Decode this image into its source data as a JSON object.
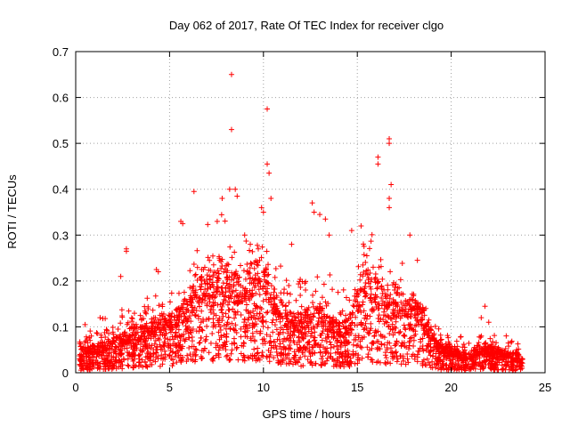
{
  "chart_data": {
    "type": "scatter",
    "title": "Day 062 of 2017, Rate Of TEC Index for receiver clgo",
    "xlabel": "GPS time / hours",
    "ylabel": "ROTI / TECUs",
    "xlim": [
      0,
      25
    ],
    "ylim": [
      0,
      0.7
    ],
    "x_ticks": [
      0,
      5,
      10,
      15,
      20,
      25
    ],
    "x_tick_labels": [
      "0",
      "5",
      "10",
      "15",
      "20",
      "25"
    ],
    "y_ticks": [
      0,
      0.1,
      0.2,
      0.3,
      0.4,
      0.5,
      0.6,
      0.7
    ],
    "y_tick_labels": [
      "0",
      "0.1",
      "0.2",
      "0.3",
      "0.4",
      "0.5",
      "0.6",
      "0.7"
    ],
    "grid": true,
    "marker": "+",
    "color": "#ff0000",
    "series": [
      {
        "name": "ROTI",
        "envelope_hours": [
          0,
          0.5,
          1,
          1.5,
          2,
          2.5,
          3,
          3.5,
          4,
          4.5,
          5,
          5.5,
          6,
          6.5,
          7,
          7.5,
          8,
          8.5,
          9,
          9.5,
          10,
          10.5,
          11,
          11.5,
          12,
          12.5,
          13,
          13.5,
          14,
          14.5,
          15,
          15.5,
          16,
          16.5,
          17,
          17.5,
          18,
          18.5,
          19,
          19.5,
          20,
          20.5,
          21,
          21.5,
          22,
          22.5,
          23,
          23.5,
          23.8
        ],
        "typical_roti": [
          0.03,
          0.04,
          0.04,
          0.05,
          0.05,
          0.06,
          0.07,
          0.07,
          0.08,
          0.09,
          0.09,
          0.1,
          0.12,
          0.14,
          0.16,
          0.17,
          0.17,
          0.15,
          0.15,
          0.17,
          0.17,
          0.13,
          0.11,
          0.09,
          0.09,
          0.1,
          0.1,
          0.09,
          0.08,
          0.08,
          0.13,
          0.16,
          0.15,
          0.12,
          0.12,
          0.12,
          0.12,
          0.1,
          0.06,
          0.04,
          0.04,
          0.03,
          0.03,
          0.04,
          0.04,
          0.04,
          0.03,
          0.03,
          0.02
        ],
        "upper_roti": [
          0.08,
          0.1,
          0.1,
          0.12,
          0.12,
          0.14,
          0.15,
          0.16,
          0.18,
          0.18,
          0.19,
          0.21,
          0.24,
          0.3,
          0.33,
          0.34,
          0.35,
          0.3,
          0.32,
          0.35,
          0.37,
          0.28,
          0.24,
          0.2,
          0.22,
          0.26,
          0.3,
          0.22,
          0.2,
          0.18,
          0.3,
          0.34,
          0.32,
          0.28,
          0.28,
          0.27,
          0.25,
          0.2,
          0.13,
          0.1,
          0.08,
          0.08,
          0.08,
          0.1,
          0.09,
          0.08,
          0.08,
          0.07,
          0.05
        ],
        "outliers": [
          {
            "x": 8.3,
            "y": 0.65
          },
          {
            "x": 8.3,
            "y": 0.53
          },
          {
            "x": 10.2,
            "y": 0.575
          },
          {
            "x": 10.2,
            "y": 0.455
          },
          {
            "x": 10.3,
            "y": 0.435
          },
          {
            "x": 16.7,
            "y": 0.51
          },
          {
            "x": 16.7,
            "y": 0.5
          },
          {
            "x": 16.1,
            "y": 0.47
          },
          {
            "x": 16.1,
            "y": 0.455
          },
          {
            "x": 16.8,
            "y": 0.41
          },
          {
            "x": 16.7,
            "y": 0.38
          },
          {
            "x": 16.7,
            "y": 0.36
          },
          {
            "x": 6.3,
            "y": 0.395
          },
          {
            "x": 7.8,
            "y": 0.38
          },
          {
            "x": 8.2,
            "y": 0.4
          },
          {
            "x": 8.5,
            "y": 0.4
          },
          {
            "x": 8.6,
            "y": 0.385
          },
          {
            "x": 9.9,
            "y": 0.36
          },
          {
            "x": 10.0,
            "y": 0.35
          },
          {
            "x": 10.4,
            "y": 0.38
          },
          {
            "x": 5.6,
            "y": 0.33
          },
          {
            "x": 5.7,
            "y": 0.325
          },
          {
            "x": 12.6,
            "y": 0.37
          },
          {
            "x": 12.7,
            "y": 0.35
          },
          {
            "x": 13.0,
            "y": 0.345
          },
          {
            "x": 13.3,
            "y": 0.335
          },
          {
            "x": 15.2,
            "y": 0.32
          },
          {
            "x": 14.7,
            "y": 0.31
          },
          {
            "x": 2.7,
            "y": 0.27
          },
          {
            "x": 2.7,
            "y": 0.265
          },
          {
            "x": 4.3,
            "y": 0.225
          },
          {
            "x": 4.4,
            "y": 0.22
          },
          {
            "x": 2.4,
            "y": 0.21
          },
          {
            "x": 17.8,
            "y": 0.3
          },
          {
            "x": 18.2,
            "y": 0.245
          },
          {
            "x": 21.8,
            "y": 0.145
          },
          {
            "x": 21.6,
            "y": 0.12
          },
          {
            "x": 22.0,
            "y": 0.11
          },
          {
            "x": 0.5,
            "y": 0.105
          },
          {
            "x": 1.3,
            "y": 0.12
          },
          {
            "x": 9.0,
            "y": 0.3
          },
          {
            "x": 9.3,
            "y": 0.28
          },
          {
            "x": 11.5,
            "y": 0.28
          },
          {
            "x": 13.5,
            "y": 0.3
          }
        ]
      }
    ]
  }
}
